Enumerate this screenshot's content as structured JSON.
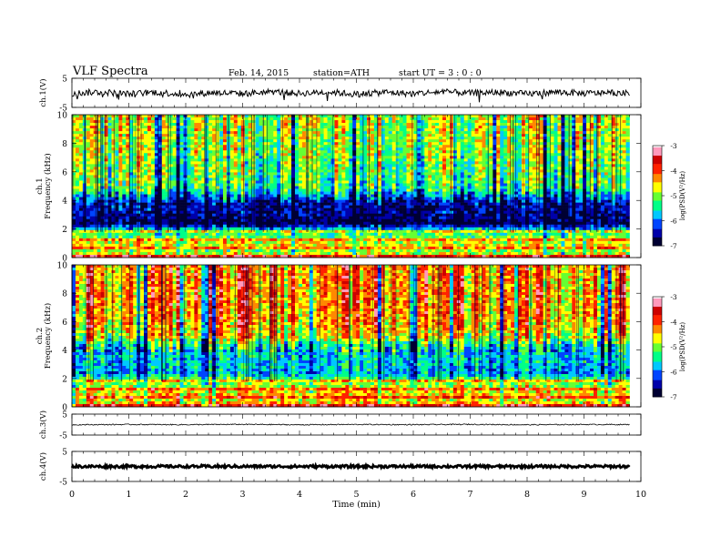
{
  "header": {
    "title": "VLF  Spectra",
    "date": "Feb. 14, 2015",
    "station": "station=ATH",
    "start": "start  UT  =   3  : 0  : 0"
  },
  "colorbar": {
    "label": "log(PSD(V²/Hz)",
    "ticks": [
      "-3",
      "-4",
      "-5",
      "-6",
      "-7"
    ],
    "colors": [
      "#000033",
      "#0000aa",
      "#0044ff",
      "#00c8ff",
      "#00ff88",
      "#66ff33",
      "#ffff00",
      "#ff8800",
      "#ff2200",
      "#cc0000",
      "#ff99bb",
      "#ffffff"
    ]
  },
  "chart_data": [
    {
      "type": "line",
      "name": "ch1-waveform",
      "ylabel": "ch.1(V)",
      "ylim": [
        -5,
        5
      ],
      "yticks": [
        "5",
        "-5"
      ],
      "xlim": [
        0,
        10
      ],
      "x": [
        0,
        0.5,
        1,
        1.5,
        2,
        2.5,
        3,
        3.5,
        4,
        4.5,
        5,
        5.5,
        6,
        6.5,
        7,
        7.5,
        8,
        8.5,
        9,
        9.5,
        9.8
      ],
      "y": [
        -0.2,
        0.3,
        -0.4,
        0.2,
        -0.6,
        0.1,
        -0.3,
        0.4,
        -0.2,
        0.3,
        -0.5,
        0.2,
        -0.3,
        0.4,
        -0.1,
        0.2,
        -0.4,
        0.3,
        -0.2,
        0.1,
        -0.3
      ]
    },
    {
      "type": "heatmap",
      "name": "ch1-spectrogram",
      "ylabel": "ch.1\nFrequency  (kHz)",
      "ylim": [
        0,
        10
      ],
      "yticks": [
        "10",
        "8",
        "6",
        "4",
        "2",
        "0"
      ],
      "xlim": [
        0,
        9.8
      ],
      "zlim": [
        -7,
        -3
      ],
      "freq_profile_kHz": [
        0,
        0.5,
        1,
        2,
        2.5,
        3,
        4,
        4.5,
        5,
        6,
        7,
        8,
        9,
        10
      ],
      "freq_profile_logpsd": [
        -3.8,
        -5.0,
        -4.6,
        -5.4,
        -6.8,
        -6.6,
        -6.4,
        -5.8,
        -5.2,
        -5.1,
        -5.0,
        -4.9,
        -4.8,
        -4.8
      ]
    },
    {
      "type": "heatmap",
      "name": "ch2-spectrogram",
      "ylabel": "ch.2\nFrequency  (kHz)",
      "ylim": [
        0,
        10
      ],
      "yticks": [
        "10",
        "8",
        "6",
        "4",
        "2",
        "0"
      ],
      "xlim": [
        0,
        9.8
      ],
      "zlim": [
        -7,
        -3
      ],
      "freq_profile_kHz": [
        0,
        0.5,
        1,
        2,
        2.5,
        3,
        4,
        4.5,
        5,
        6,
        7,
        8,
        9,
        10
      ],
      "freq_profile_logpsd": [
        -3.9,
        -4.6,
        -4.4,
        -5.1,
        -5.8,
        -5.6,
        -5.6,
        -5.3,
        -4.6,
        -4.3,
        -4.2,
        -4.2,
        -4.2,
        -4.2
      ]
    },
    {
      "type": "line",
      "name": "ch3-waveform",
      "ylabel": "ch.3(V)",
      "ylim": [
        -5,
        5
      ],
      "yticks": [
        "5",
        "-5"
      ],
      "xlim": [
        0,
        10
      ],
      "x": [
        0,
        1,
        2,
        3,
        4,
        5,
        6,
        7,
        8,
        9,
        9.8
      ],
      "y": [
        -0.1,
        0.05,
        -0.05,
        0.1,
        -0.1,
        0.05,
        -0.05,
        0.1,
        -0.1,
        0.05,
        0
      ]
    },
    {
      "type": "line",
      "name": "ch4-waveform",
      "ylabel": "ch.4(V)",
      "ylim": [
        -5,
        5
      ],
      "yticks": [
        "5",
        "-5"
      ],
      "xlim": [
        0,
        10
      ],
      "x": [
        0,
        1,
        2,
        3,
        4,
        5,
        6,
        7,
        8,
        9,
        9.8
      ],
      "y": [
        0,
        0,
        0,
        0,
        0,
        0,
        0,
        0,
        0,
        0,
        0
      ]
    }
  ],
  "xaxis": {
    "label": "Time  (min)",
    "ticks": [
      "0",
      "1",
      "2",
      "3",
      "4",
      "5",
      "6",
      "7",
      "8",
      "9",
      "10"
    ]
  }
}
